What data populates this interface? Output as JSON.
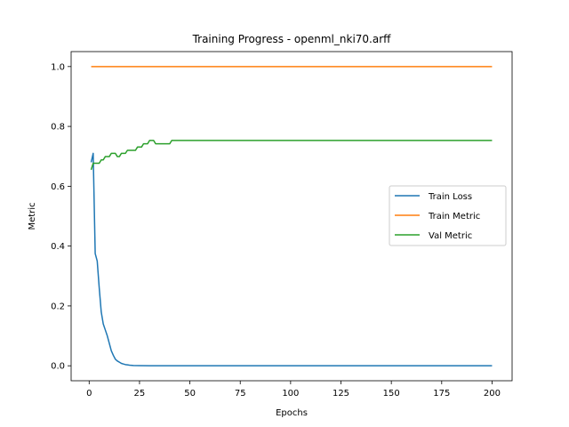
{
  "chart_data": {
    "type": "line",
    "title": "Training Progress - openml_nki70.arff",
    "xlabel": "Epochs",
    "ylabel": "Metric",
    "xlim": [
      -8.95,
      209.95
    ],
    "ylim": [
      -0.05,
      1.05
    ],
    "xticks": [
      0,
      25,
      50,
      75,
      100,
      125,
      150,
      175,
      200
    ],
    "yticks": [
      0.0,
      0.2,
      0.4,
      0.6,
      0.8,
      1.0
    ],
    "xtick_labels": [
      "0",
      "25",
      "50",
      "75",
      "100",
      "125",
      "150",
      "175",
      "200"
    ],
    "ytick_labels": [
      "0.0",
      "0.2",
      "0.4",
      "0.6",
      "0.8",
      "1.0"
    ],
    "grid": false,
    "legend_position": "center-right",
    "series": [
      {
        "name": "Train Loss",
        "color": "#1f77b4",
        "points": [
          [
            1,
            0.68
          ],
          [
            2,
            0.71
          ],
          [
            3,
            0.375
          ],
          [
            4,
            0.35
          ],
          [
            5,
            0.26
          ],
          [
            6,
            0.18
          ],
          [
            7,
            0.14
          ],
          [
            8,
            0.12
          ],
          [
            9,
            0.1
          ],
          [
            10,
            0.075
          ],
          [
            11,
            0.05
          ],
          [
            12,
            0.035
          ],
          [
            13,
            0.022
          ],
          [
            14,
            0.016
          ],
          [
            15,
            0.012
          ],
          [
            16,
            0.008
          ],
          [
            17,
            0.006
          ],
          [
            18,
            0.004
          ],
          [
            19,
            0.003
          ],
          [
            20,
            0.002
          ],
          [
            22,
            0.001
          ],
          [
            25,
            0.0005
          ],
          [
            30,
            0.0002
          ],
          [
            40,
            0.0001
          ],
          [
            60,
            0.0
          ],
          [
            100,
            0.0
          ],
          [
            150,
            0.0
          ],
          [
            200,
            0.0
          ]
        ]
      },
      {
        "name": "Train Metric",
        "color": "#ff7f0e",
        "points": [
          [
            1,
            1.0
          ],
          [
            200,
            1.0
          ]
        ]
      },
      {
        "name": "Val Metric",
        "color": "#2ca02c",
        "points": [
          [
            1,
            0.655
          ],
          [
            2,
            0.677
          ],
          [
            3,
            0.677
          ],
          [
            4,
            0.677
          ],
          [
            5,
            0.677
          ],
          [
            6,
            0.688
          ],
          [
            7,
            0.688
          ],
          [
            8,
            0.699
          ],
          [
            9,
            0.699
          ],
          [
            10,
            0.699
          ],
          [
            11,
            0.71
          ],
          [
            12,
            0.71
          ],
          [
            13,
            0.71
          ],
          [
            14,
            0.699
          ],
          [
            15,
            0.699
          ],
          [
            16,
            0.71
          ],
          [
            17,
            0.71
          ],
          [
            18,
            0.71
          ],
          [
            19,
            0.72
          ],
          [
            20,
            0.72
          ],
          [
            21,
            0.72
          ],
          [
            22,
            0.72
          ],
          [
            23,
            0.72
          ],
          [
            24,
            0.731
          ],
          [
            25,
            0.731
          ],
          [
            26,
            0.731
          ],
          [
            27,
            0.742
          ],
          [
            28,
            0.742
          ],
          [
            29,
            0.742
          ],
          [
            30,
            0.753
          ],
          [
            31,
            0.753
          ],
          [
            32,
            0.753
          ],
          [
            33,
            0.742
          ],
          [
            34,
            0.742
          ],
          [
            35,
            0.742
          ],
          [
            36,
            0.742
          ],
          [
            37,
            0.742
          ],
          [
            38,
            0.742
          ],
          [
            39,
            0.742
          ],
          [
            40,
            0.742
          ],
          [
            41,
            0.753
          ],
          [
            42,
            0.753
          ],
          [
            60,
            0.753
          ],
          [
            100,
            0.753
          ],
          [
            150,
            0.753
          ],
          [
            200,
            0.753
          ]
        ]
      }
    ]
  }
}
